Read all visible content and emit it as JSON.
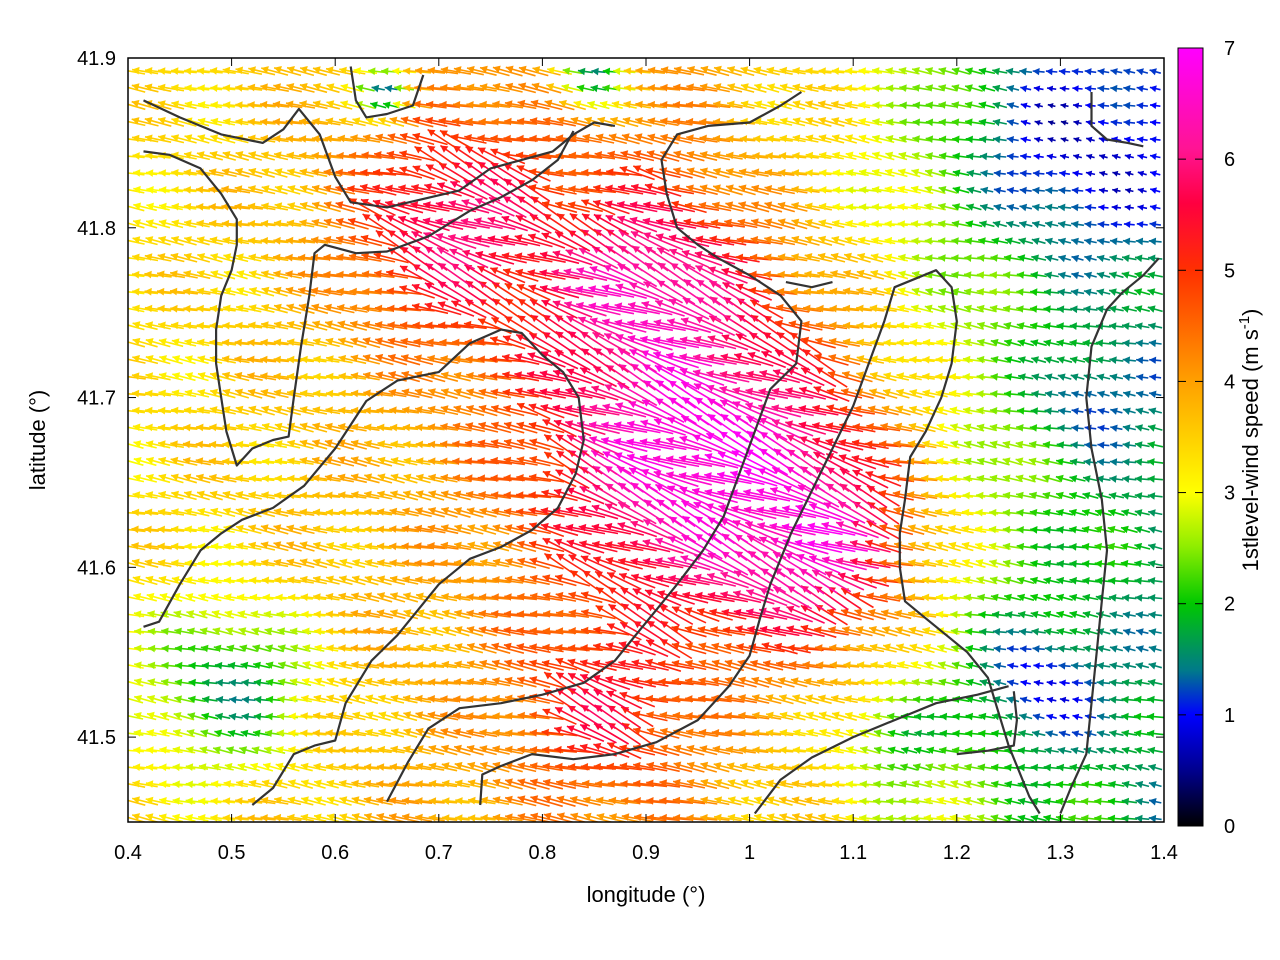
{
  "chart_data": {
    "type": "vector-field",
    "xlabel": "longitude (°)",
    "ylabel": "latitude (°)",
    "xlim": [
      0.4,
      1.4
    ],
    "ylim": [
      41.45,
      41.9
    ],
    "x_ticks": [
      "0.4",
      "0.5",
      "0.6",
      "0.7",
      "0.8",
      "0.9",
      "1",
      "1.1",
      "1.2",
      "1.3",
      "1.4"
    ],
    "y_ticks": [
      "41.5",
      "41.6",
      "41.7",
      "41.8",
      "41.9"
    ],
    "colorbar": {
      "label_main": "1stlevel-wind speed (m s",
      "label_sup": "-1",
      "label_end": ")",
      "range": [
        0,
        7
      ],
      "ticks": [
        "0",
        "1",
        "2",
        "3",
        "4",
        "5",
        "6",
        "7"
      ],
      "colors": [
        "#000000",
        "#0000ff",
        "#00c800",
        "#ffff00",
        "#ffa000",
        "#ff0000",
        "#ff1493",
        "#ff00ff"
      ]
    },
    "grid": false,
    "vector_grid": {
      "lon_step": 0.0125,
      "lat_step": 0.01
    },
    "wind_regions": [
      {
        "lon": 0.95,
        "lat": 41.67,
        "speed": 7.0,
        "r": 0.17
      },
      {
        "lon": 0.9,
        "lat": 41.76,
        "speed": 6.6,
        "r": 0.11
      },
      {
        "lon": 1.05,
        "lat": 41.62,
        "speed": 6.8,
        "r": 0.12
      },
      {
        "lon": 0.72,
        "lat": 41.8,
        "speed": 6.0,
        "r": 0.12
      },
      {
        "lon": 0.86,
        "lat": 41.52,
        "speed": 5.5,
        "r": 0.09
      },
      {
        "lon": 0.5,
        "lat": 41.53,
        "speed": 1.6,
        "r": 0.09
      },
      {
        "lon": 1.32,
        "lat": 41.85,
        "speed": 0.7,
        "r": 0.13
      },
      {
        "lon": 1.28,
        "lat": 41.53,
        "speed": 0.9,
        "r": 0.08
      },
      {
        "lon": 1.33,
        "lat": 41.7,
        "speed": 1.1,
        "r": 0.06
      },
      {
        "lon": 0.65,
        "lat": 41.88,
        "speed": 1.2,
        "r": 0.03
      },
      {
        "lon": 0.85,
        "lat": 41.89,
        "speed": 1.5,
        "r": 0.04
      },
      {
        "lon": 1.15,
        "lat": 41.5,
        "speed": 1.8,
        "r": 0.05
      }
    ],
    "background_speed": {
      "west": 3.3,
      "center": 4.2,
      "east": 1.6
    },
    "contour_lines": [
      [
        [
          0.415,
          41.875
        ],
        [
          0.45,
          41.865
        ],
        [
          0.49,
          41.855
        ],
        [
          0.53,
          41.85
        ],
        [
          0.55,
          41.858
        ],
        [
          0.565,
          41.87
        ],
        [
          0.585,
          41.855
        ],
        [
          0.6,
          41.83
        ],
        [
          0.615,
          41.815
        ],
        [
          0.65,
          41.812
        ],
        [
          0.685,
          41.817
        ],
        [
          0.72,
          41.822
        ],
        [
          0.75,
          41.835
        ],
        [
          0.78,
          41.84
        ],
        [
          0.81,
          41.845
        ],
        [
          0.83,
          41.855
        ],
        [
          0.85,
          41.862
        ],
        [
          0.87,
          41.86
        ]
      ],
      [
        [
          0.415,
          41.845
        ],
        [
          0.44,
          41.843
        ],
        [
          0.47,
          41.835
        ],
        [
          0.49,
          41.82
        ],
        [
          0.505,
          41.805
        ],
        [
          0.505,
          41.79
        ],
        [
          0.5,
          41.775
        ],
        [
          0.49,
          41.76
        ],
        [
          0.485,
          41.74
        ],
        [
          0.485,
          41.72
        ],
        [
          0.49,
          41.7
        ],
        [
          0.495,
          41.68
        ],
        [
          0.505,
          41.66
        ],
        [
          0.52,
          41.67
        ],
        [
          0.54,
          41.675
        ],
        [
          0.555,
          41.677
        ],
        [
          0.56,
          41.7
        ],
        [
          0.567,
          41.73
        ],
        [
          0.575,
          41.76
        ],
        [
          0.58,
          41.785
        ],
        [
          0.59,
          41.79
        ],
        [
          0.62,
          41.785
        ],
        [
          0.65,
          41.786
        ],
        [
          0.69,
          41.795
        ],
        [
          0.73,
          41.81
        ],
        [
          0.76,
          41.818
        ],
        [
          0.79,
          41.828
        ],
        [
          0.815,
          41.84
        ],
        [
          0.83,
          41.857
        ]
      ],
      [
        [
          0.415,
          41.565
        ],
        [
          0.43,
          41.568
        ],
        [
          0.45,
          41.59
        ],
        [
          0.47,
          41.61
        ],
        [
          0.49,
          41.62
        ],
        [
          0.51,
          41.628
        ],
        [
          0.54,
          41.635
        ],
        [
          0.57,
          41.648
        ],
        [
          0.6,
          41.67
        ],
        [
          0.63,
          41.698
        ],
        [
          0.66,
          41.71
        ],
        [
          0.7,
          41.715
        ],
        [
          0.73,
          41.732
        ],
        [
          0.76,
          41.74
        ],
        [
          0.78,
          41.738
        ],
        [
          0.8,
          41.725
        ],
        [
          0.82,
          41.715
        ],
        [
          0.835,
          41.7
        ],
        [
          0.84,
          41.675
        ],
        [
          0.832,
          41.655
        ],
        [
          0.815,
          41.635
        ],
        [
          0.79,
          41.622
        ],
        [
          0.76,
          41.612
        ],
        [
          0.73,
          41.605
        ],
        [
          0.7,
          41.59
        ],
        [
          0.68,
          41.575
        ],
        [
          0.66,
          41.56
        ],
        [
          0.635,
          41.545
        ],
        [
          0.61,
          41.52
        ],
        [
          0.6,
          41.498
        ],
        [
          0.58,
          41.495
        ],
        [
          0.56,
          41.49
        ],
        [
          0.54,
          41.47
        ],
        [
          0.52,
          41.46
        ]
      ],
      [
        [
          0.65,
          41.462
        ],
        [
          0.67,
          41.485
        ],
        [
          0.69,
          41.505
        ],
        [
          0.72,
          41.517
        ],
        [
          0.76,
          41.52
        ],
        [
          0.8,
          41.525
        ],
        [
          0.84,
          41.532
        ],
        [
          0.87,
          41.545
        ],
        [
          0.89,
          41.56
        ],
        [
          0.91,
          41.575
        ],
        [
          0.93,
          41.59
        ],
        [
          0.955,
          41.61
        ],
        [
          0.975,
          41.63
        ],
        [
          0.99,
          41.655
        ],
        [
          1.005,
          41.68
        ],
        [
          1.02,
          41.705
        ],
        [
          1.045,
          41.72
        ],
        [
          1.05,
          41.745
        ],
        [
          1.03,
          41.76
        ],
        [
          1.0,
          41.772
        ],
        [
          0.97,
          41.782
        ],
        [
          0.95,
          41.79
        ],
        [
          0.93,
          41.8
        ],
        [
          0.92,
          41.82
        ],
        [
          0.915,
          41.84
        ],
        [
          0.93,
          41.855
        ],
        [
          0.96,
          41.86
        ],
        [
          1.0,
          41.862
        ],
        [
          1.03,
          41.872
        ],
        [
          1.05,
          41.88
        ]
      ],
      [
        [
          0.74,
          41.46
        ],
        [
          0.742,
          41.478
        ],
        [
          0.76,
          41.483
        ],
        [
          0.79,
          41.49
        ],
        [
          0.83,
          41.487
        ],
        [
          0.87,
          41.49
        ],
        [
          0.91,
          41.497
        ],
        [
          0.95,
          41.51
        ],
        [
          0.98,
          41.53
        ],
        [
          1.0,
          41.548
        ],
        [
          1.01,
          41.57
        ],
        [
          1.02,
          41.59
        ],
        [
          1.04,
          41.62
        ],
        [
          1.06,
          41.645
        ],
        [
          1.08,
          41.67
        ],
        [
          1.1,
          41.695
        ],
        [
          1.115,
          41.72
        ],
        [
          1.13,
          41.745
        ],
        [
          1.14,
          41.765
        ],
        [
          1.16,
          41.77
        ],
        [
          1.18,
          41.775
        ],
        [
          1.195,
          41.765
        ],
        [
          1.2,
          41.745
        ],
        [
          1.195,
          41.72
        ],
        [
          1.185,
          41.7
        ],
        [
          1.17,
          41.68
        ],
        [
          1.155,
          41.665
        ],
        [
          1.15,
          41.64
        ],
        [
          1.145,
          41.62
        ],
        [
          1.145,
          41.6
        ],
        [
          1.15,
          41.58
        ],
        [
          1.17,
          41.57
        ],
        [
          1.19,
          41.56
        ],
        [
          1.21,
          41.55
        ],
        [
          1.23,
          41.535
        ],
        [
          1.24,
          41.515
        ],
        [
          1.25,
          41.495
        ],
        [
          1.26,
          41.48
        ],
        [
          1.27,
          41.465
        ],
        [
          1.28,
          41.455
        ]
      ],
      [
        [
          1.3,
          41.455
        ],
        [
          1.31,
          41.47
        ],
        [
          1.325,
          41.49
        ],
        [
          1.33,
          41.52
        ],
        [
          1.335,
          41.55
        ],
        [
          1.34,
          41.58
        ],
        [
          1.345,
          41.61
        ],
        [
          1.34,
          41.64
        ],
        [
          1.33,
          41.67
        ],
        [
          1.325,
          41.7
        ],
        [
          1.33,
          41.73
        ],
        [
          1.345,
          41.752
        ],
        [
          1.36,
          41.762
        ],
        [
          1.38,
          41.772
        ],
        [
          1.395,
          41.782
        ]
      ],
      [
        [
          0.615,
          41.895
        ],
        [
          0.62,
          41.875
        ],
        [
          0.63,
          41.865
        ],
        [
          0.65,
          41.867
        ],
        [
          0.675,
          41.872
        ],
        [
          0.685,
          41.89
        ]
      ],
      [
        [
          1.035,
          41.768
        ],
        [
          1.06,
          41.765
        ],
        [
          1.08,
          41.768
        ]
      ],
      [
        [
          1.005,
          41.455
        ],
        [
          1.03,
          41.475
        ],
        [
          1.06,
          41.488
        ],
        [
          1.1,
          41.5
        ],
        [
          1.14,
          41.51
        ],
        [
          1.18,
          41.52
        ],
        [
          1.22,
          41.525
        ],
        [
          1.25,
          41.53
        ]
      ],
      [
        [
          1.2,
          41.49
        ],
        [
          1.23,
          41.492
        ],
        [
          1.255,
          41.495
        ],
        [
          1.258,
          41.51
        ],
        [
          1.255,
          41.527
        ]
      ],
      [
        [
          1.33,
          41.88
        ],
        [
          1.33,
          41.86
        ],
        [
          1.345,
          41.852
        ],
        [
          1.365,
          41.85
        ],
        [
          1.38,
          41.848
        ]
      ]
    ]
  }
}
